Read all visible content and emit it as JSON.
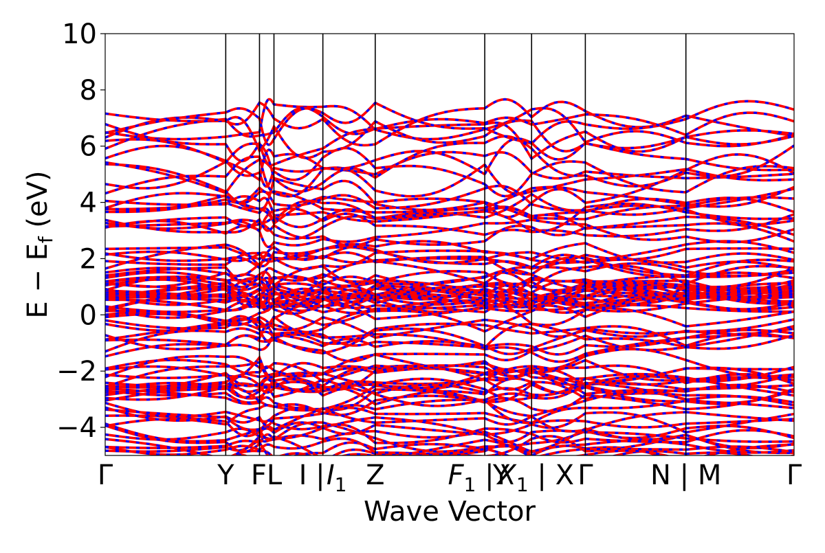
{
  "chart_data": {
    "type": "line",
    "title": "",
    "xlabel": "Wave Vector",
    "ylabel": "E − E_f (eV)",
    "ylabel_parts": {
      "main": "E − E",
      "sub": "f",
      "unit": " (eV)"
    },
    "ylim": [
      -5,
      10
    ],
    "yticks": [
      -4,
      -2,
      0,
      2,
      4,
      6,
      8,
      10
    ],
    "ytick_labels": [
      "−4",
      "−2",
      "0",
      "2",
      "4",
      "6",
      "8",
      "10"
    ],
    "grid": false,
    "legend": "none",
    "xlim": [
      0,
      1
    ],
    "kpoints": [
      {
        "x": 0.0,
        "label": "Γ"
      },
      {
        "x": 0.175,
        "label": "Y"
      },
      {
        "x": 0.224,
        "label": "F"
      },
      {
        "x": 0.245,
        "label": "L"
      },
      {
        "x": 0.316,
        "label": "I | I₁"
      },
      {
        "x": 0.392,
        "label": "Z"
      },
      {
        "x": 0.551,
        "label": "F₁ | Y"
      },
      {
        "x": 0.619,
        "label": "X₁ | X"
      },
      {
        "x": 0.697,
        "label": "Γ"
      },
      {
        "x": 0.843,
        "label": "N | M"
      },
      {
        "x": 1.0,
        "label": "Γ"
      }
    ],
    "tick_texts": [
      {
        "key": "g0",
        "text": "Γ"
      },
      {
        "key": "y",
        "text": "Y"
      },
      {
        "key": "fl",
        "text": "FL"
      },
      {
        "key": "i",
        "text": "I |"
      },
      {
        "key": "i1",
        "text": "I",
        "sub": "1"
      },
      {
        "key": "z",
        "text": "Z"
      },
      {
        "key": "f1",
        "text": "F",
        "sub": "1",
        "tail": " |"
      },
      {
        "key": "yx",
        "text": "Y"
      },
      {
        "key": "x1",
        "text": "X",
        "sub": "1",
        "tail": " | X"
      },
      {
        "key": "g1",
        "text": "Γ"
      },
      {
        "key": "nm",
        "text": "N | M"
      },
      {
        "key": "g2",
        "text": "Γ"
      }
    ],
    "segment_breaks": [
      0.551,
      0.843
    ],
    "series": [
      {
        "style": "red-solid",
        "color": "#ff0000"
      },
      {
        "style": "blue-dashed",
        "color": "#0000ff"
      }
    ],
    "band_count": 90,
    "notes_visible": "bands are dense between about -2 and 3 eV and sparse above 4 eV, with maxima near 7.2 eV"
  }
}
